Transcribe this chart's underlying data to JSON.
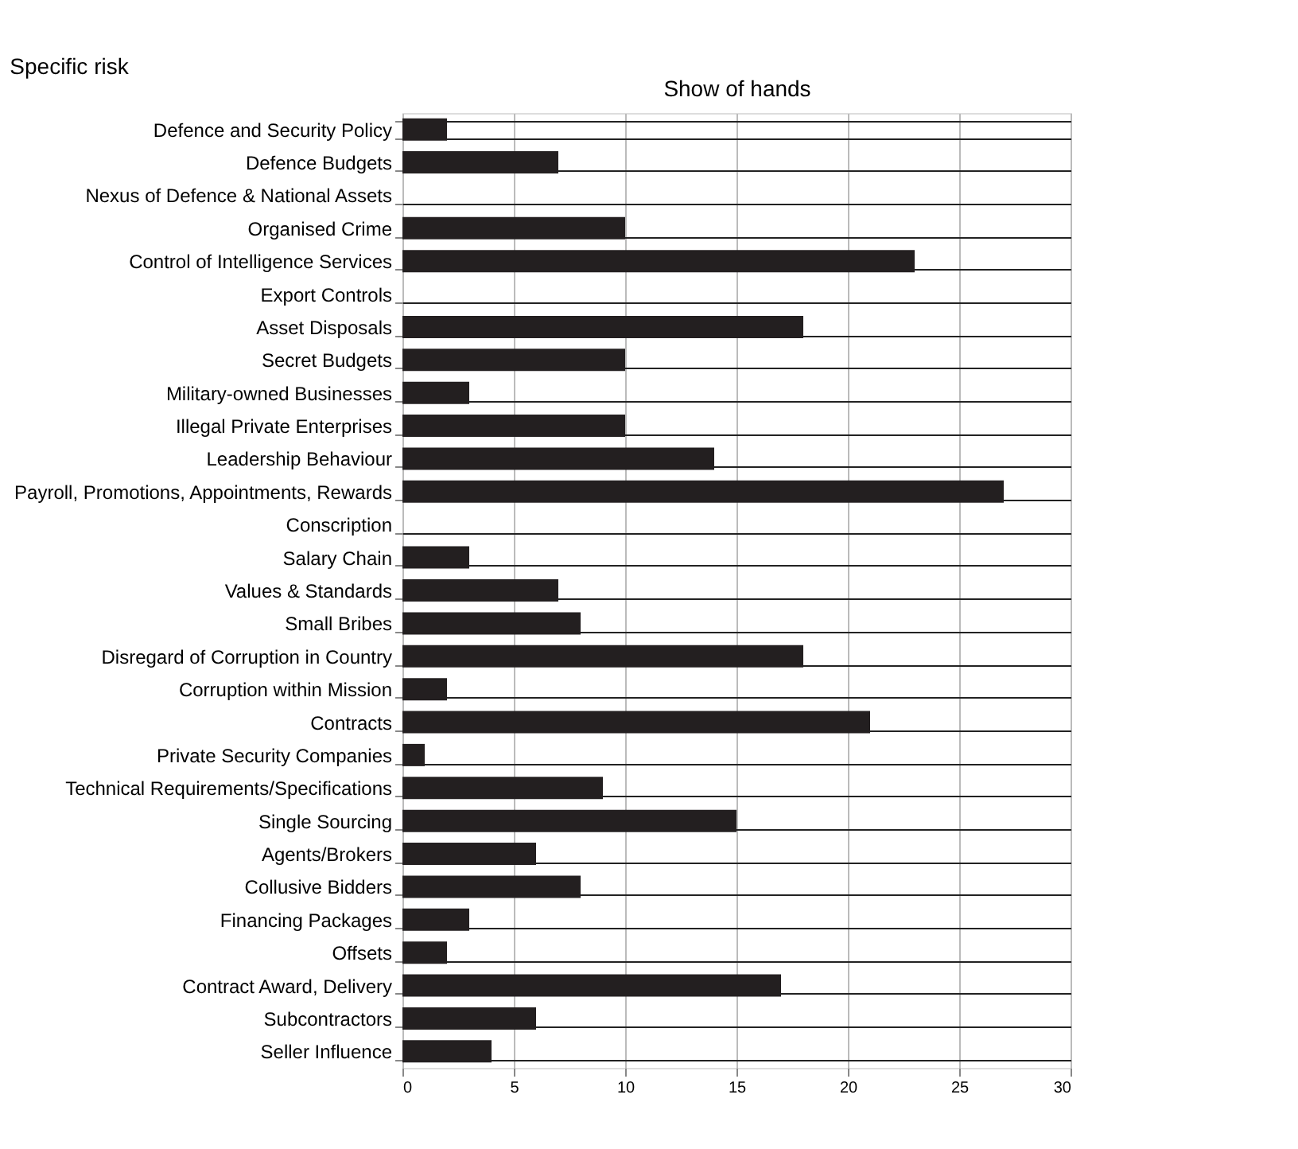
{
  "chart_data": {
    "type": "bar",
    "orientation": "horizontal",
    "ylabel": "Specific risk",
    "xlabel": "Show of hands",
    "categories": [
      "Defence and Security Policy",
      "Defence Budgets",
      "Nexus of Defence & National Assets",
      "Organised Crime",
      "Control of Intelligence Services",
      "Export Controls",
      "Asset Disposals",
      "Secret Budgets",
      "Military-owned Businesses",
      "Illegal Private Enterprises",
      "Leadership Behaviour",
      "Payroll, Promotions, Appointments, Rewards",
      "Conscription",
      "Salary Chain",
      "Values & Standards",
      "Small Bribes",
      "Disregard of Corruption in Country",
      "Corruption within Mission",
      "Contracts",
      "Private Security Companies",
      "Technical Requirements/Specifications",
      "Single Sourcing",
      "Agents/Brokers",
      "Collusive Bidders",
      "Financing Packages",
      "Offsets",
      "Contract Award, Delivery",
      "Subcontractors",
      "Seller Influence"
    ],
    "values": [
      2,
      7,
      0,
      10,
      23,
      0,
      18,
      10,
      3,
      10,
      14,
      27,
      0,
      3,
      7,
      8,
      18,
      2,
      21,
      1,
      9,
      15,
      6,
      8,
      3,
      2,
      17,
      6,
      4
    ],
    "color": "#231f20",
    "xlim": [
      0,
      30
    ],
    "xticks": [
      0,
      5,
      10,
      15,
      20,
      25,
      30
    ],
    "grid": true
  }
}
